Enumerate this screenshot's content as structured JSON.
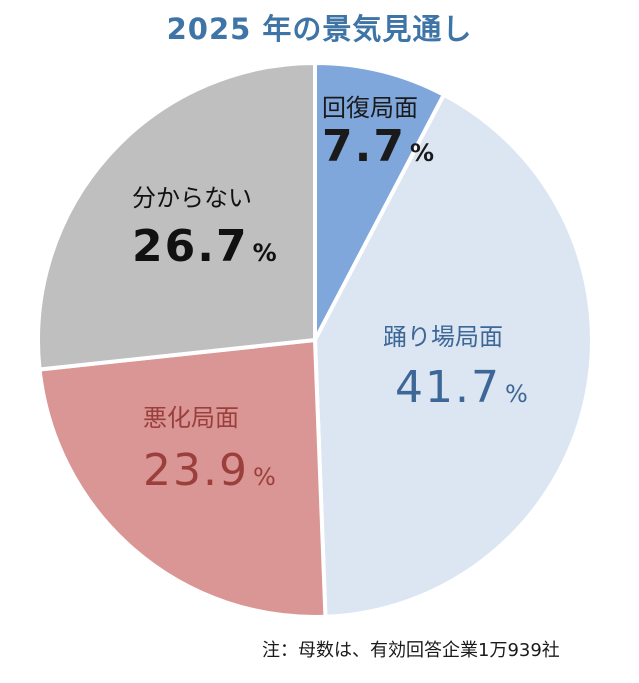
{
  "chart_data": {
    "type": "pie",
    "title": "2025 年の景気見通し",
    "start_angle": "12 o'clock, clockwise",
    "slices": [
      {
        "label": "回復局面",
        "value": 7.7,
        "color": "#7fa7dc",
        "text_color": "#1a1a1a"
      },
      {
        "label": "踊り場局面",
        "value": 41.7,
        "color": "#dce6f2",
        "text_color": "#3d6797"
      },
      {
        "label": "悪化局面",
        "value": 23.9,
        "color": "#d99694",
        "text_color": "#9b3f3d"
      },
      {
        "label": "分からない",
        "value": 26.7,
        "color": "#bfbfbf",
        "text_color": "#111111"
      }
    ],
    "value_suffix": "%",
    "note": "注：母数は、有効回答企業1万939社"
  }
}
